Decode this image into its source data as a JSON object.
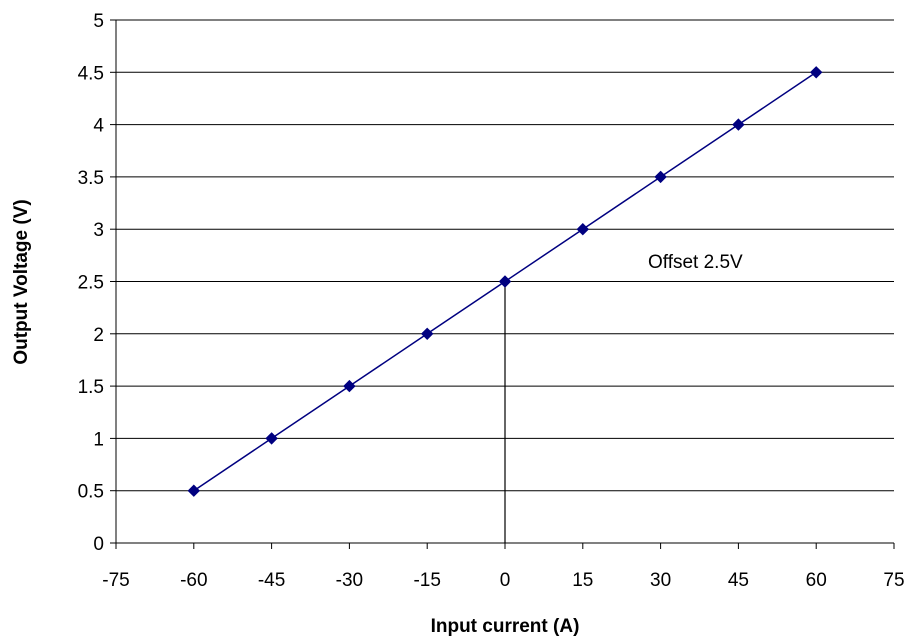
{
  "chart_data": {
    "type": "scatter",
    "xlabel": "Input current (A)",
    "ylabel": "Output Voltage (V)",
    "xlim": [
      -75,
      75
    ],
    "ylim": [
      0,
      5
    ],
    "x_ticks": [
      "-75",
      "-60",
      "-45",
      "-30",
      "-15",
      "0",
      "15",
      "30",
      "45",
      "60",
      "75"
    ],
    "y_ticks": [
      "0",
      "0.5",
      "1",
      "1.5",
      "2",
      "2.5",
      "3",
      "3.5",
      "4",
      "4.5",
      "5"
    ],
    "grid": "horizontal",
    "legend": "none",
    "series": [
      {
        "x": [
          -60,
          -45,
          -30,
          -15,
          0,
          15,
          30,
          45,
          60
        ],
        "y": [
          0.5,
          1.0,
          1.5,
          2.0,
          2.5,
          3.0,
          3.5,
          4.0,
          4.5
        ],
        "color": "#000080",
        "marker": "diamond",
        "line": "connected"
      }
    ],
    "annotations": [
      {
        "text": "Offset 2.5V"
      }
    ],
    "reference_line": {
      "x": 0,
      "y_from": 0,
      "y_to": 2.5,
      "color": "#000000"
    }
  }
}
